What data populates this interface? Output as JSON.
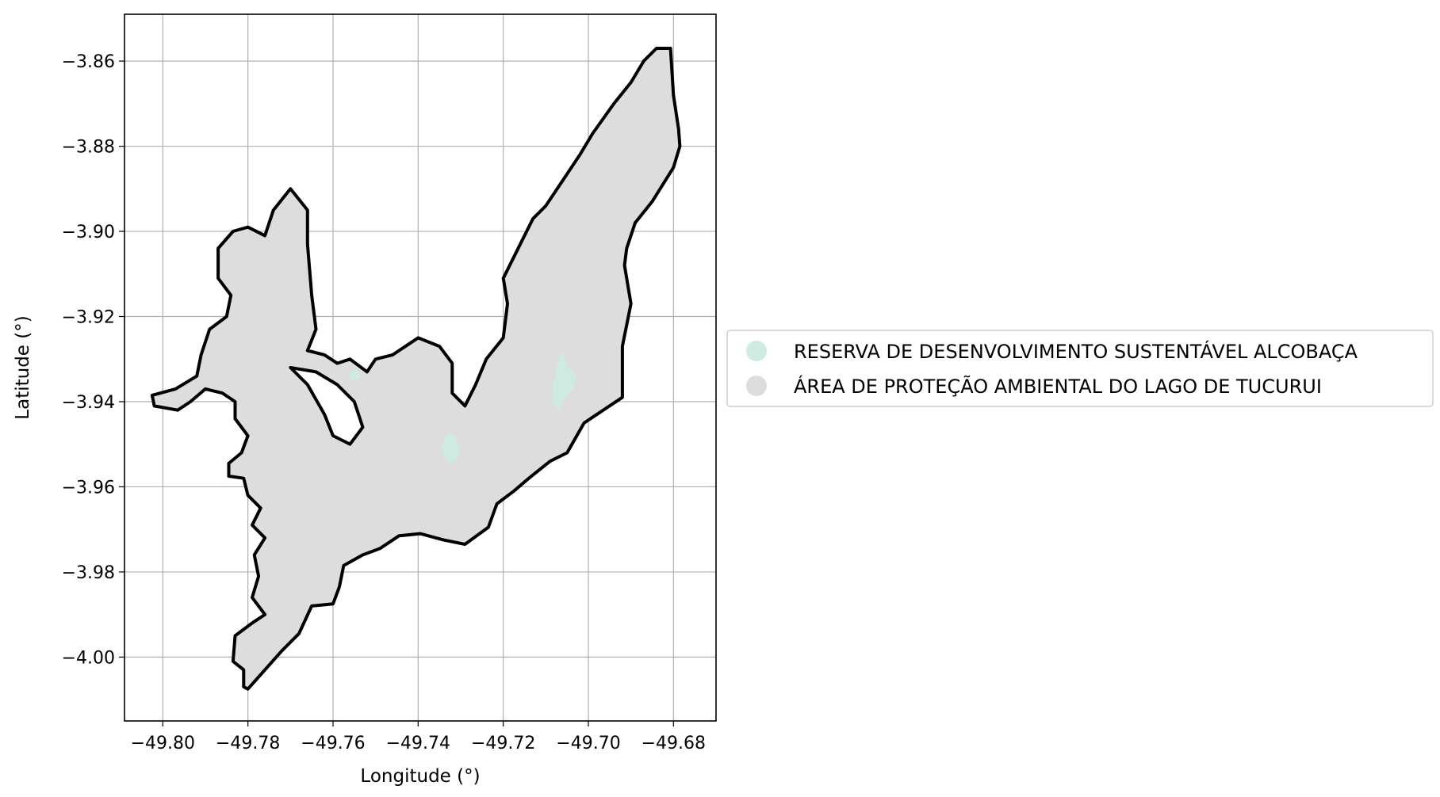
{
  "chart_data": {
    "type": "map",
    "xlabel": "Longitude (°)",
    "ylabel": "Latitude (°)",
    "xlim": [
      -49.809,
      -49.67
    ],
    "ylim": [
      -4.015,
      -3.849
    ],
    "x_ticks": [
      {
        "value": -49.8,
        "label": "−49.80"
      },
      {
        "value": -49.78,
        "label": "−49.78"
      },
      {
        "value": -49.76,
        "label": "−49.76"
      },
      {
        "value": -49.74,
        "label": "−49.74"
      },
      {
        "value": -49.72,
        "label": "−49.72"
      },
      {
        "value": -49.7,
        "label": "−49.70"
      },
      {
        "value": -49.68,
        "label": "−49.68"
      }
    ],
    "y_ticks": [
      {
        "value": -3.86,
        "label": "−3.86"
      },
      {
        "value": -3.88,
        "label": "−3.88"
      },
      {
        "value": -3.9,
        "label": "−3.90"
      },
      {
        "value": -3.92,
        "label": "−3.92"
      },
      {
        "value": -3.94,
        "label": "−3.94"
      },
      {
        "value": -3.96,
        "label": "−3.96"
      },
      {
        "value": -3.98,
        "label": "−3.98"
      },
      {
        "value": -4.0,
        "label": "−4.00"
      }
    ],
    "grid": true,
    "legend_position": "right",
    "legend": [
      {
        "label": "RESERVA DE DESENVOLVIMENTO SUSTENTÁVEL ALCOBAÇA",
        "color": "#cdebe0"
      },
      {
        "label": "ÁREA DE PROTEÇÃO AMBIENTAL DO LAGO DE TUCURUI",
        "color": "#dddddd"
      }
    ],
    "layers": [
      {
        "name": "ÁREA DE PROTEÇÃO AMBIENTAL DO LAGO DE TUCURUI",
        "fill": "#dddddd",
        "stroke": "#000000",
        "polygon": [
          [
            -49.6807,
            -3.857
          ],
          [
            -49.68,
            -3.868
          ],
          [
            -49.6788,
            -3.876
          ],
          [
            -49.6785,
            -3.88
          ],
          [
            -49.68,
            -3.885
          ],
          [
            -49.685,
            -3.893
          ],
          [
            -49.689,
            -3.898
          ],
          [
            -49.691,
            -3.904
          ],
          [
            -49.6915,
            -3.908
          ],
          [
            -49.69,
            -3.917
          ],
          [
            -49.692,
            -3.927
          ],
          [
            -49.692,
            -3.939
          ],
          [
            -49.698,
            -3.943
          ],
          [
            -49.701,
            -3.945
          ],
          [
            -49.705,
            -3.952
          ],
          [
            -49.709,
            -3.954
          ],
          [
            -49.714,
            -3.958
          ],
          [
            -49.7175,
            -3.961
          ],
          [
            -49.7215,
            -3.964
          ],
          [
            -49.7235,
            -3.9695
          ],
          [
            -49.729,
            -3.9735
          ],
          [
            -49.734,
            -3.9725
          ],
          [
            -49.7395,
            -3.971
          ],
          [
            -49.7445,
            -3.9715
          ],
          [
            -49.749,
            -3.9745
          ],
          [
            -49.753,
            -3.976
          ],
          [
            -49.7575,
            -3.9785
          ],
          [
            -49.7585,
            -3.9835
          ],
          [
            -49.76,
            -3.9875
          ],
          [
            -49.765,
            -3.988
          ],
          [
            -49.768,
            -3.9945
          ],
          [
            -49.772,
            -3.9985
          ],
          [
            -49.776,
            -4.003
          ],
          [
            -49.78,
            -4.0075
          ],
          [
            -49.781,
            -4.007
          ],
          [
            -49.781,
            -4.003
          ],
          [
            -49.7835,
            -4.001
          ],
          [
            -49.783,
            -3.995
          ],
          [
            -49.779,
            -3.992
          ],
          [
            -49.776,
            -3.99
          ],
          [
            -49.779,
            -3.986
          ],
          [
            -49.7775,
            -3.981
          ],
          [
            -49.7785,
            -3.976
          ],
          [
            -49.776,
            -3.972
          ],
          [
            -49.779,
            -3.969
          ],
          [
            -49.777,
            -3.965
          ],
          [
            -49.78,
            -3.962
          ],
          [
            -49.781,
            -3.958
          ],
          [
            -49.7845,
            -3.9575
          ],
          [
            -49.7845,
            -3.9545
          ],
          [
            -49.7815,
            -3.952
          ],
          [
            -49.78,
            -3.948
          ],
          [
            -49.783,
            -3.944
          ],
          [
            -49.783,
            -3.94
          ],
          [
            -49.786,
            -3.938
          ],
          [
            -49.79,
            -3.937
          ],
          [
            -49.7935,
            -3.94
          ],
          [
            -49.7965,
            -3.942
          ],
          [
            -49.802,
            -3.941
          ],
          [
            -49.8025,
            -3.9385
          ],
          [
            -49.797,
            -3.937
          ],
          [
            -49.792,
            -3.934
          ],
          [
            -49.791,
            -3.929
          ],
          [
            -49.789,
            -3.923
          ],
          [
            -49.785,
            -3.92
          ],
          [
            -49.784,
            -3.915
          ],
          [
            -49.787,
            -3.911
          ],
          [
            -49.787,
            -3.904
          ],
          [
            -49.7835,
            -3.9
          ],
          [
            -49.78,
            -3.899
          ],
          [
            -49.776,
            -3.901
          ],
          [
            -49.774,
            -3.895
          ],
          [
            -49.77,
            -3.89
          ],
          [
            -49.766,
            -3.895
          ],
          [
            -49.766,
            -3.903
          ],
          [
            -49.765,
            -3.915
          ],
          [
            -49.764,
            -3.923
          ],
          [
            -49.766,
            -3.928
          ],
          [
            -49.762,
            -3.929
          ],
          [
            -49.759,
            -3.931
          ],
          [
            -49.756,
            -3.93
          ],
          [
            -49.752,
            -3.933
          ],
          [
            -49.75,
            -3.93
          ],
          [
            -49.746,
            -3.929
          ],
          [
            -49.74,
            -3.925
          ],
          [
            -49.735,
            -3.927
          ],
          [
            -49.732,
            -3.931
          ],
          [
            -49.732,
            -3.938
          ],
          [
            -49.729,
            -3.941
          ],
          [
            -49.7265,
            -3.936
          ],
          [
            -49.724,
            -3.93
          ],
          [
            -49.72,
            -3.925
          ],
          [
            -49.719,
            -3.917
          ],
          [
            -49.72,
            -3.911
          ],
          [
            -49.716,
            -3.903
          ],
          [
            -49.713,
            -3.897
          ],
          [
            -49.71,
            -3.894
          ],
          [
            -49.706,
            -3.888
          ],
          [
            -49.702,
            -3.882
          ],
          [
            -49.699,
            -3.877
          ],
          [
            -49.694,
            -3.87
          ],
          [
            -49.69,
            -3.865
          ],
          [
            -49.687,
            -3.86
          ],
          [
            -49.684,
            -3.857
          ],
          [
            -49.6807,
            -3.857
          ]
        ],
        "islands": [
          [
            [
              -49.77,
              -3.932
            ],
            [
              -49.766,
              -3.936
            ],
            [
              -49.762,
              -3.943
            ],
            [
              -49.76,
              -3.948
            ],
            [
              -49.756,
              -3.95
            ],
            [
              -49.753,
              -3.946
            ],
            [
              -49.755,
              -3.94
            ],
            [
              -49.759,
              -3.936
            ],
            [
              -49.764,
              -3.933
            ],
            [
              -49.77,
              -3.932
            ]
          ]
        ]
      },
      {
        "name": "RESERVA DE DESENVOLVIMENTO SUSTENTÁVEL ALCOBAÇA",
        "fill": "#cdebe0",
        "stroke": "none",
        "polygons": [
          [
            [
              -49.706,
              -3.928
            ],
            [
              -49.705,
              -3.932
            ],
            [
              -49.703,
              -3.933
            ],
            [
              -49.7035,
              -3.937
            ],
            [
              -49.7055,
              -3.939
            ],
            [
              -49.707,
              -3.942
            ],
            [
              -49.7085,
              -3.94
            ],
            [
              -49.708,
              -3.935
            ],
            [
              -49.707,
              -3.93
            ],
            [
              -49.706,
              -3.928
            ]
          ],
          [
            [
              -49.732,
              -3.947
            ],
            [
              -49.73,
              -3.951
            ],
            [
              -49.731,
              -3.954
            ],
            [
              -49.733,
              -3.9545
            ],
            [
              -49.7345,
              -3.951
            ],
            [
              -49.7335,
              -3.948
            ],
            [
              -49.732,
              -3.947
            ]
          ],
          [
            [
              -49.7545,
              -3.932
            ],
            [
              -49.7535,
              -3.9345
            ],
            [
              -49.7555,
              -3.935
            ],
            [
              -49.756,
              -3.933
            ],
            [
              -49.7545,
              -3.932
            ]
          ]
        ]
      }
    ]
  }
}
